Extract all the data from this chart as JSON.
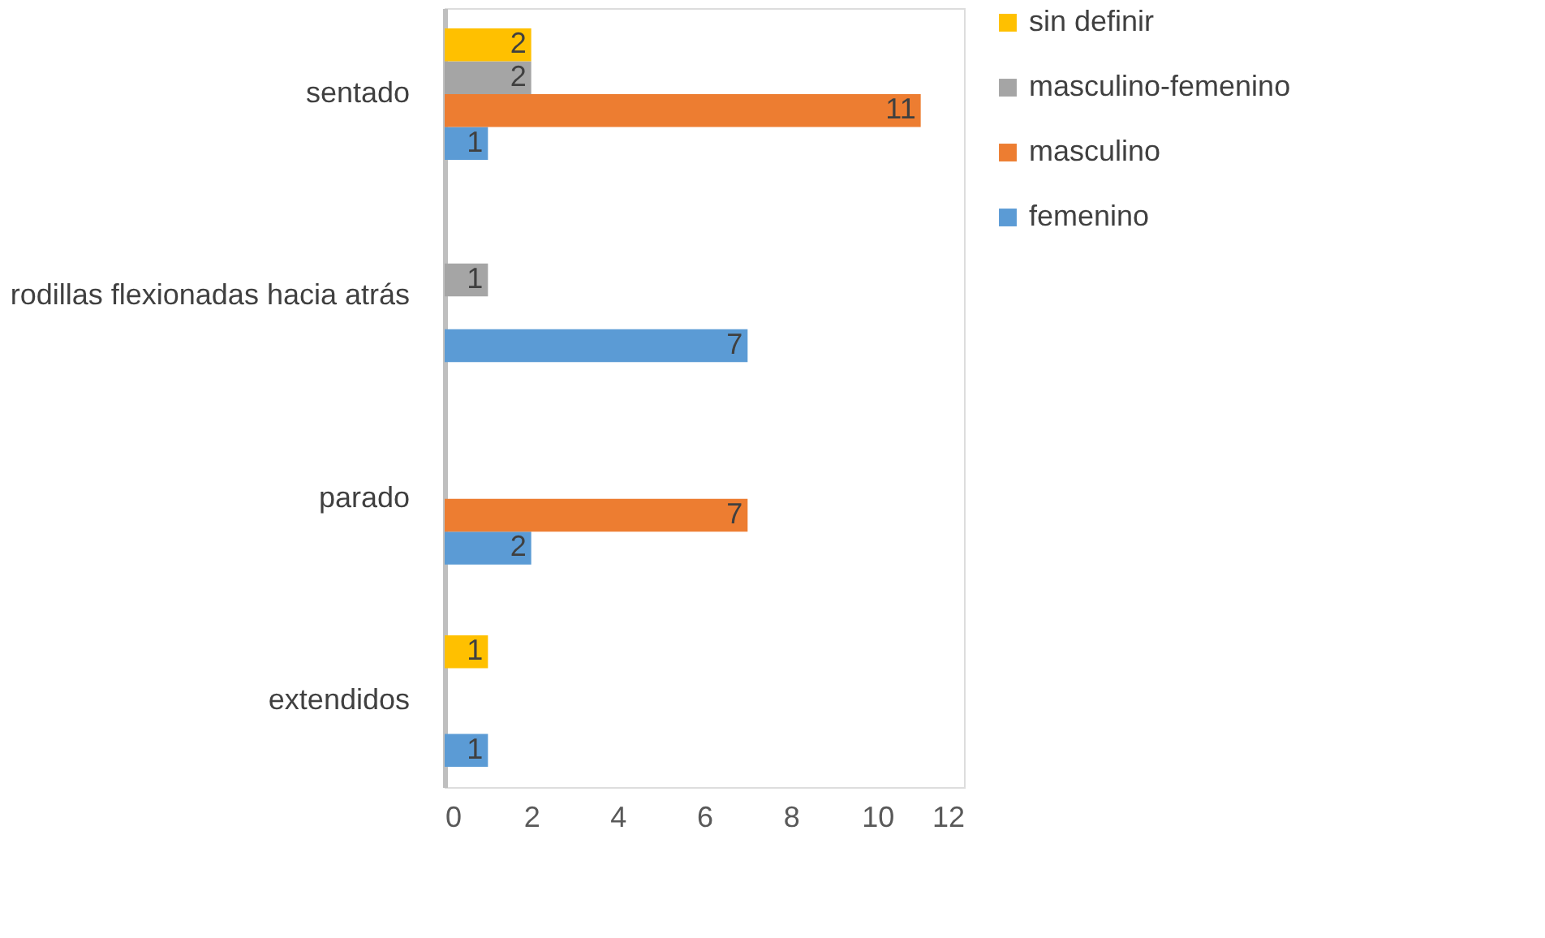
{
  "chart_data": {
    "type": "bar",
    "orientation": "horizontal",
    "categories": [
      "sentado",
      "rodillas flexionadas hacia atrás",
      "parado",
      "extendidos"
    ],
    "series": [
      {
        "name": "femenino",
        "color": "#5b9bd5",
        "values": [
          1,
          7,
          2,
          1
        ]
      },
      {
        "name": "masculino",
        "color": "#ed7d31",
        "values": [
          11,
          null,
          7,
          null
        ]
      },
      {
        "name": "masculino-femenino",
        "color": "#a5a5a5",
        "values": [
          2,
          1,
          null,
          null
        ]
      },
      {
        "name": "sin definir",
        "color": "#ffc000",
        "values": [
          2,
          null,
          null,
          1
        ]
      }
    ],
    "xlim": [
      0,
      12
    ],
    "xticks": [
      0,
      2,
      4,
      6,
      8,
      10,
      12
    ],
    "grid": false,
    "legend": "right",
    "data_labels": true
  }
}
